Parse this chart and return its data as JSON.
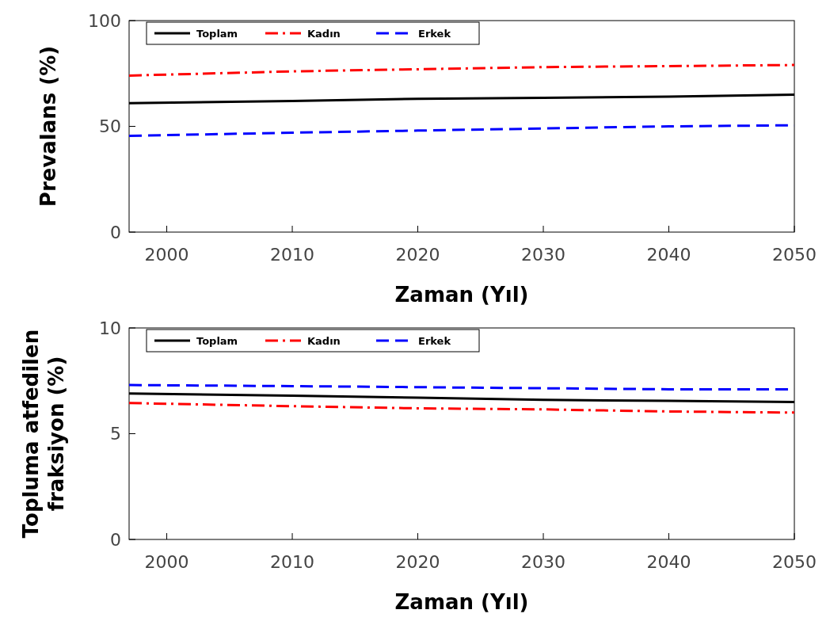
{
  "chart_data": [
    {
      "type": "line",
      "xlabel": "Zaman (Yıl)",
      "ylabel": "Prevalans (%)",
      "xlim": [
        1997,
        2050
      ],
      "xticks": [
        2000,
        2010,
        2020,
        2030,
        2040,
        2050
      ],
      "ylim": [
        0,
        100
      ],
      "yticks": [
        0,
        50,
        100
      ],
      "grid": false,
      "legend": "top left",
      "x": [
        1997,
        2010,
        2020,
        2030,
        2040,
        2050
      ],
      "series": [
        {
          "name": "Toplam",
          "color": "#000000",
          "line_style": "solid",
          "values": [
            61,
            62,
            63,
            63.5,
            64,
            65
          ]
        },
        {
          "name": "Kadın",
          "color": "#ff0000",
          "line_style": "dashdot",
          "values": [
            74,
            76,
            77,
            78,
            78.5,
            79
          ]
        },
        {
          "name": "Erkek",
          "color": "#0000ff",
          "line_style": "dashed",
          "values": [
            45.5,
            47,
            48,
            49,
            50,
            50.5
          ]
        }
      ]
    },
    {
      "type": "line",
      "xlabel": "Zaman (Yıl)",
      "ylabel": "Topluma atfedilen fraksiyon (%)",
      "xlim": [
        1997,
        2050
      ],
      "xticks": [
        2000,
        2010,
        2020,
        2030,
        2040,
        2050
      ],
      "ylim": [
        0,
        10
      ],
      "yticks": [
        0,
        5,
        10
      ],
      "grid": false,
      "legend": "top left",
      "x": [
        1997,
        2010,
        2020,
        2030,
        2040,
        2050
      ],
      "series": [
        {
          "name": "Toplam",
          "color": "#000000",
          "line_style": "solid",
          "values": [
            6.9,
            6.8,
            6.7,
            6.6,
            6.55,
            6.5
          ]
        },
        {
          "name": "Kadın",
          "color": "#ff0000",
          "line_style": "dashdot",
          "values": [
            6.45,
            6.3,
            6.2,
            6.15,
            6.05,
            6.0
          ]
        },
        {
          "name": "Erkek",
          "color": "#0000ff",
          "line_style": "dashed",
          "values": [
            7.3,
            7.25,
            7.2,
            7.15,
            7.1,
            7.1
          ]
        }
      ]
    }
  ]
}
